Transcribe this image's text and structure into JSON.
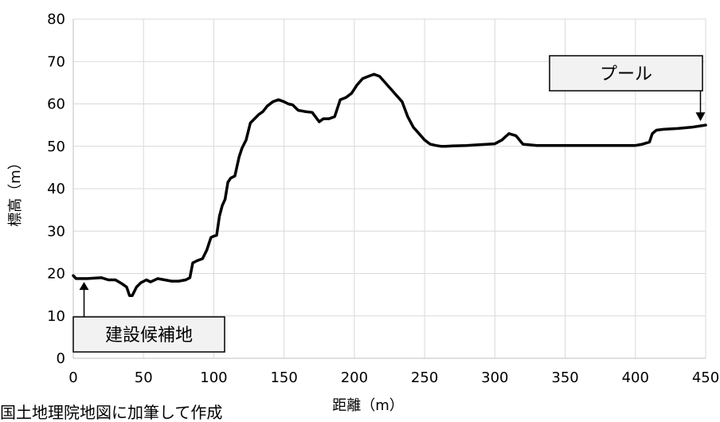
{
  "chart_data": {
    "type": "line",
    "xlabel": "距離（m）",
    "ylabel": "標高（m）",
    "xlim": [
      0,
      450
    ],
    "ylim": [
      0,
      80
    ],
    "x_ticks": [
      "0",
      "50",
      "100",
      "150",
      "200",
      "250",
      "300",
      "350",
      "400",
      "450"
    ],
    "y_ticks": [
      "0",
      "10",
      "20",
      "30",
      "40",
      "50",
      "60",
      "70",
      "80"
    ],
    "grid": true,
    "series": [
      {
        "x": [
          0,
          2,
          10,
          20,
          25,
          30,
          35,
          38,
          40,
          42,
          45,
          48,
          52,
          55,
          60,
          65,
          70,
          75,
          80,
          83,
          85,
          88,
          92,
          95,
          98,
          100,
          102,
          104,
          106,
          108,
          110,
          112,
          115,
          118,
          120,
          123,
          126,
          129,
          132,
          135,
          138,
          142,
          146,
          150,
          153,
          156,
          160,
          165,
          170,
          175,
          178,
          182,
          186,
          190,
          194,
          198,
          202,
          206,
          210,
          214,
          218,
          222,
          226,
          230,
          234,
          238,
          242,
          246,
          250,
          254,
          258,
          262,
          265,
          270,
          280,
          290,
          300,
          305,
          310,
          315,
          320,
          330,
          340,
          350,
          360,
          370,
          380,
          390,
          400,
          405,
          410,
          412,
          415,
          420,
          430,
          440,
          450
        ],
        "y": [
          19.5,
          18.8,
          18.8,
          19.0,
          18.5,
          18.5,
          17.5,
          16.8,
          14.8,
          14.8,
          16.8,
          17.8,
          18.5,
          18.0,
          18.8,
          18.5,
          18.2,
          18.2,
          18.5,
          19.0,
          22.5,
          23.0,
          23.5,
          25.5,
          28.5,
          28.8,
          29.0,
          33.5,
          36.0,
          37.5,
          41.5,
          42.5,
          43.0,
          47.5,
          49.5,
          51.5,
          55.5,
          56.5,
          57.5,
          58.2,
          59.5,
          60.5,
          61.0,
          60.5,
          60.0,
          59.8,
          58.5,
          58.2,
          58.0,
          55.8,
          56.5,
          56.5,
          57.0,
          61.0,
          61.5,
          62.5,
          64.5,
          66.0,
          66.5,
          67.0,
          66.5,
          65.0,
          63.5,
          62.0,
          60.5,
          57.0,
          54.5,
          53.0,
          51.5,
          50.5,
          50.2,
          50.0,
          50.0,
          50.1,
          50.2,
          50.4,
          50.6,
          51.5,
          53.0,
          52.5,
          50.5,
          50.2,
          50.2,
          50.2,
          50.2,
          50.2,
          50.2,
          50.2,
          50.2,
          50.5,
          51.0,
          53.0,
          53.8,
          54.0,
          54.2,
          54.5,
          55.0
        ]
      }
    ],
    "annotations": [
      {
        "label": "建設候補地",
        "x": 2,
        "y": 19.5,
        "position": "below"
      },
      {
        "label": "プール",
        "x": 448,
        "y": 55,
        "position": "above"
      }
    ]
  },
  "footnote": "国土地理院地図に加筆して作成"
}
